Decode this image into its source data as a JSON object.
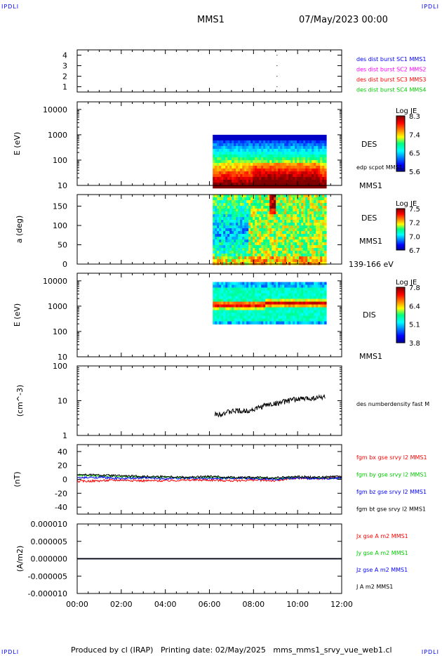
{
  "header": {
    "corner_label": "IPDLI",
    "title": "MMS1",
    "date": "07/May/2023 00:00"
  },
  "footer": {
    "text": "Produced by cl (IRAP)   Printing date: 02/May/2025   mms_mms1_srvy_vue_web1.cl"
  },
  "colors": {
    "blue": "#0000ff",
    "magenta": "#ff00ff",
    "red": "#ff0000",
    "green": "#00cc00",
    "black": "#000000"
  },
  "chart_data": [
    {
      "type": "scatter",
      "panel": "burst",
      "ylim": [
        0.5,
        4.5
      ],
      "yticks": [
        "1",
        "2",
        "3",
        "4"
      ],
      "x_hours": [
        9.05,
        9.05,
        9.05,
        9.05
      ],
      "y": [
        1,
        2,
        3,
        4
      ],
      "legend": [
        {
          "label": "des dist burst SC1 MMS1",
          "color": "#0000ff"
        },
        {
          "label": "des dist burst SC2 MMS2",
          "color": "#ff00ff"
        },
        {
          "label": "des dist burst SC3 MMS3",
          "color": "#ff0000"
        },
        {
          "label": "des dist burst SC4 MMS4",
          "color": "#00cc00"
        }
      ]
    },
    {
      "type": "heatmap",
      "panel": "des-energy",
      "ylabel": "E (eV)",
      "yscale": "log",
      "ylim": [
        10,
        20000
      ],
      "yticks": [
        "10",
        "100",
        "1000",
        "10000"
      ],
      "x_range_hours": [
        6.15,
        11.25
      ],
      "y_range": [
        10,
        1000
      ],
      "colorbar": {
        "title": "Log JE",
        "ticks": [
          "8.3",
          "7.4",
          "6.5",
          "5.6"
        ]
      },
      "labels": [
        "DES",
        "edp scpot MMS1",
        "MMS1"
      ]
    },
    {
      "type": "heatmap",
      "panel": "des-pitch",
      "ylabel": "a (deg)",
      "ylim": [
        0,
        180
      ],
      "yticks": [
        "0",
        "50",
        "100",
        "150"
      ],
      "x_range_hours": [
        6.15,
        11.25
      ],
      "colorbar": {
        "title": "Log JE",
        "ticks": [
          "7.5",
          "7.2",
          "7.0",
          "6.7"
        ]
      },
      "labels": [
        "DES",
        "MMS1",
        "139-166 eV"
      ]
    },
    {
      "type": "heatmap",
      "panel": "dis-energy",
      "ylabel": "E (eV)",
      "yscale": "log",
      "ylim": [
        10,
        20000
      ],
      "yticks": [
        "10",
        "100",
        "1000",
        "10000"
      ],
      "x_range_hours": [
        6.15,
        11.25
      ],
      "y_range": [
        200,
        9000
      ],
      "colorbar": {
        "title": "Log JE",
        "ticks": [
          "7.8",
          "6.4",
          "5.1",
          "3.8"
        ]
      },
      "labels": [
        "DIS",
        "MMS1"
      ]
    },
    {
      "type": "line",
      "panel": "density",
      "ylabel": "(cm^-3)",
      "yscale": "log",
      "ylim": [
        1,
        100
      ],
      "yticks": [
        "1",
        "10",
        "100"
      ],
      "series": [
        {
          "name": "des numberdensity fast M",
          "color": "#000000",
          "x": [
            6.25,
            6.5,
            6.75,
            7.0,
            7.25,
            7.5,
            7.75,
            8.0,
            8.25,
            8.5,
            8.75,
            9.0,
            9.25,
            9.5,
            9.75,
            10.0,
            10.25,
            10.5,
            10.75,
            11.0,
            11.25
          ],
          "y": [
            4.0,
            4.3,
            4.6,
            4.9,
            5.2,
            4.9,
            5.3,
            5.6,
            6.4,
            7.3,
            7.9,
            8.3,
            9.0,
            9.8,
            10.6,
            11.2,
            11.4,
            11.7,
            12.0,
            12.5,
            13.2
          ]
        }
      ]
    },
    {
      "type": "line",
      "panel": "magnetic-field",
      "ylabel": "(nT)",
      "ylim": [
        -50,
        50
      ],
      "yticks": [
        "-40",
        "-20",
        "0",
        "20",
        "40"
      ],
      "series": [
        {
          "name": "fgm bx gse srvy l2 MMS1",
          "color": "#ff0000",
          "x": [
            0,
            1,
            2,
            3,
            4,
            5,
            6,
            7,
            8,
            9,
            10,
            11,
            12
          ],
          "y": [
            -3,
            -2,
            -1,
            -2,
            -2,
            -1,
            -1,
            -2,
            -1,
            -2,
            2,
            1,
            3
          ]
        },
        {
          "name": "fgm by gse srvy l2 MMS1",
          "color": "#00cc00",
          "x": [
            0,
            1,
            2,
            3,
            4,
            5,
            6,
            7,
            8,
            9,
            10,
            11,
            12
          ],
          "y": [
            6,
            5,
            4,
            3,
            3,
            2,
            3,
            2,
            2,
            1,
            3,
            2,
            2
          ]
        },
        {
          "name": "fgm bz gse srvy l2 MMS1",
          "color": "#0000ff",
          "x": [
            0,
            1,
            2,
            3,
            4,
            5,
            6,
            7,
            8,
            9,
            10,
            11,
            12
          ],
          "y": [
            2,
            3,
            1,
            2,
            1,
            2,
            1,
            2,
            1,
            0,
            2,
            1,
            2
          ]
        },
        {
          "name": "fgm bt gse srvy l2 MMS1",
          "color": "#000000",
          "x": [
            0,
            1,
            2,
            3,
            4,
            5,
            6,
            7,
            8,
            9,
            10,
            11,
            12
          ],
          "y": [
            7,
            6,
            5,
            4,
            4,
            3,
            4,
            3,
            3,
            2,
            4,
            3,
            4
          ]
        }
      ]
    },
    {
      "type": "line",
      "panel": "current-density",
      "ylabel": "(A/m2)",
      "ylim": [
        -1e-05,
        1e-05
      ],
      "yticks": [
        "-0.000010",
        "-0.000005",
        "0.000000",
        "0.000005",
        "0.000010"
      ],
      "series": [
        {
          "name": "Jx gse A m2 MMS1",
          "color": "#ff0000",
          "x": [
            0,
            12
          ],
          "y": [
            0,
            0
          ]
        },
        {
          "name": "Jy gse A m2 MMS1",
          "color": "#00cc00",
          "x": [
            0,
            12
          ],
          "y": [
            0,
            0
          ]
        },
        {
          "name": "Jz gse A m2 MMS1",
          "color": "#0000ff",
          "x": [
            0,
            12
          ],
          "y": [
            0,
            0
          ]
        },
        {
          "name": "J A m2 MMS1",
          "color": "#000000",
          "x": [
            0,
            12
          ],
          "y": [
            0,
            0
          ]
        }
      ]
    }
  ],
  "x_axis": {
    "xlim_hours": [
      0,
      12
    ],
    "ticks": [
      "00:00",
      "02:00",
      "04:00",
      "06:00",
      "08:00",
      "10:00",
      "12:00"
    ]
  }
}
